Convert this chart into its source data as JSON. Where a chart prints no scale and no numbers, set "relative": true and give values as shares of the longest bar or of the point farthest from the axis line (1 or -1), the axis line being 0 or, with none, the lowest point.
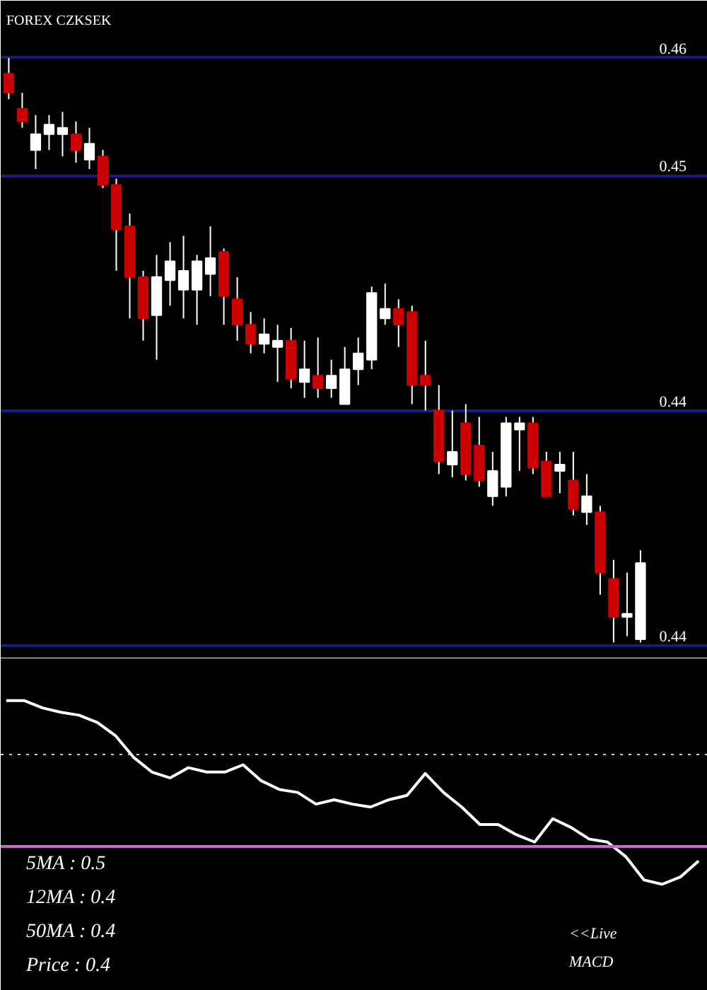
{
  "chart_data": [
    {
      "type": "candlestick",
      "title": "FOREX  CZKSEK",
      "categories": [
        null,
        null,
        null,
        null,
        null,
        null,
        null,
        null,
        null,
        null,
        null,
        null,
        null,
        null,
        null,
        null,
        null,
        null,
        null,
        null,
        null,
        null,
        null,
        null,
        null,
        null,
        null,
        null,
        null,
        null,
        null,
        null,
        null,
        null,
        null,
        null,
        null,
        null,
        null,
        null,
        null,
        null,
        null,
        null,
        null,
        null,
        null,
        null
      ],
      "ohlc": [
        [
          0.4547,
          0.4552,
          0.4539,
          0.4541
        ],
        [
          0.4536,
          0.4541,
          0.453,
          0.4532
        ],
        [
          0.4523,
          0.4534,
          0.4517,
          0.4528
        ],
        [
          0.4528,
          0.4534,
          0.4523,
          0.4531
        ],
        [
          0.4528,
          0.4535,
          0.4521,
          0.453
        ],
        [
          0.4528,
          0.4532,
          0.4519,
          0.4523
        ],
        [
          0.452,
          0.453,
          0.4517,
          0.4525
        ],
        [
          0.4521,
          0.4523,
          0.4511,
          0.4512
        ],
        [
          0.4512,
          0.4514,
          0.4485,
          0.4498
        ],
        [
          0.4499,
          0.4503,
          0.447,
          0.4483
        ],
        [
          0.4483,
          0.4485,
          0.4463,
          0.447
        ],
        [
          0.4471,
          0.449,
          0.4457,
          0.4483
        ],
        [
          0.4482,
          0.4494,
          0.4474,
          0.4488
        ],
        [
          0.4479,
          0.4496,
          0.447,
          0.4485
        ],
        [
          0.4479,
          0.449,
          0.4468,
          0.4488
        ],
        [
          0.4484,
          0.4499,
          0.4477,
          0.4489
        ],
        [
          0.4491,
          0.4492,
          0.4468,
          0.4477
        ],
        [
          0.4476,
          0.4483,
          0.4463,
          0.4468
        ],
        [
          0.4468,
          0.4472,
          0.4459,
          0.4462
        ],
        [
          0.4462,
          0.447,
          0.4459,
          0.4465
        ],
        [
          0.4461,
          0.4468,
          0.445,
          0.4463
        ],
        [
          0.4463,
          0.4467,
          0.4448,
          0.4451
        ],
        [
          0.445,
          0.4463,
          0.4445,
          0.4454
        ],
        [
          0.4452,
          0.4464,
          0.4445,
          0.4448
        ],
        [
          0.4448,
          0.4457,
          0.4445,
          0.4452
        ],
        [
          0.4443,
          0.4461,
          0.4443,
          0.4454
        ],
        [
          0.4454,
          0.4464,
          0.4449,
          0.4459
        ],
        [
          0.4457,
          0.448,
          0.4454,
          0.4478
        ],
        [
          0.447,
          0.4481,
          0.4468,
          0.4473
        ],
        [
          0.4473,
          0.4476,
          0.4461,
          0.4468
        ],
        [
          0.4472,
          0.4474,
          0.4443,
          0.4449
        ],
        [
          0.4452,
          0.4463,
          0.4441,
          0.4449
        ],
        [
          0.4441,
          0.4449,
          0.4421,
          0.4425
        ],
        [
          0.4424,
          0.4441,
          0.442,
          0.4428
        ],
        [
          0.4437,
          0.4443,
          0.4419,
          0.4421
        ],
        [
          0.443,
          0.4439,
          0.4417,
          0.4419
        ],
        [
          0.4414,
          0.4428,
          0.4411,
          0.4422
        ],
        [
          0.4417,
          0.4439,
          0.4414,
          0.4437
        ],
        [
          0.4435,
          0.4439,
          0.4422,
          0.4437
        ],
        [
          0.4437,
          0.4439,
          0.4421,
          0.4423
        ],
        [
          0.4425,
          0.4428,
          0.4414,
          0.4414
        ],
        [
          0.4422,
          0.4428,
          0.4415,
          0.4424
        ],
        [
          0.4419,
          0.4428,
          0.4408,
          0.441
        ],
        [
          0.4409,
          0.4421,
          0.4405,
          0.4414
        ],
        [
          0.4409,
          0.4411,
          0.4383,
          0.439
        ],
        [
          0.4388,
          0.4394,
          0.4368,
          0.4376
        ],
        [
          0.4376,
          0.439,
          0.437,
          0.4377
        ],
        [
          0.4369,
          0.4397,
          0.4368,
          0.4393
        ]
      ],
      "colors": [
        "#cc0000",
        "#cc0000",
        "#ffffff",
        "#ffffff",
        "#ffffff",
        "#cc0000",
        "#ffffff",
        "#cc0000",
        "#cc0000",
        "#cc0000",
        "#cc0000",
        "#ffffff",
        "#ffffff",
        "#ffffff",
        "#ffffff",
        "#ffffff",
        "#cc0000",
        "#cc0000",
        "#cc0000",
        "#ffffff",
        "#ffffff",
        "#cc0000",
        "#ffffff",
        "#cc0000",
        "#ffffff",
        "#ffffff",
        "#ffffff",
        "#ffffff",
        "#ffffff",
        "#cc0000",
        "#cc0000",
        "#cc0000",
        "#cc0000",
        "#ffffff",
        "#cc0000",
        "#cc0000",
        "#ffffff",
        "#ffffff",
        "#ffffff",
        "#cc0000",
        "#cc0000",
        "#ffffff",
        "#cc0000",
        "#ffffff",
        "#cc0000",
        "#cc0000",
        "#ffffff",
        "#ffffff"
      ],
      "ylim": [
        0.4363,
        0.457
      ],
      "yticks": [
        {
          "value": 0.4552,
          "label": "0.46"
        },
        {
          "value": 0.4515,
          "label": "0.45"
        },
        {
          "value": 0.4441,
          "label": "0.44"
        },
        {
          "value": 0.4367,
          "label": "0.44"
        }
      ],
      "grid": "y"
    },
    {
      "type": "line",
      "relative": true,
      "categories": [
        null,
        null,
        null,
        null,
        null,
        null,
        null,
        null,
        null,
        null,
        null,
        null,
        null,
        null,
        null,
        null,
        null,
        null,
        null,
        null,
        null,
        null,
        null,
        null,
        null,
        null,
        null,
        null,
        null,
        null,
        null,
        null,
        null,
        null,
        null,
        null,
        null,
        null,
        null
      ],
      "series": [
        {
          "color": "#ffffff",
          "values": [
            1,
            1,
            0.95,
            0.92,
            0.9,
            0.85,
            0.76,
            0.61,
            0.51,
            0.47,
            0.54,
            0.51,
            0.51,
            0.56,
            0.45,
            0.39,
            0.37,
            0.29,
            0.32,
            0.29,
            0.27,
            0.32,
            0.35,
            0.5,
            0.37,
            0.27,
            0.15,
            0.15,
            0.08,
            0.03,
            0.19,
            0.13,
            0.05,
            0.03,
            -0.07,
            -0.23,
            -0.26,
            -0.21,
            -0.1
          ]
        }
      ],
      "ref_lines": [
        {
          "axis": "y",
          "value": 0.63,
          "color": "#cccccc",
          "line_style": "dotted"
        },
        {
          "axis": "y",
          "value": 0,
          "color": "#cc66cc",
          "line_style": "solid"
        }
      ],
      "annotations": [
        "5MA : 0.5",
        "12MA : 0.4",
        "50MA : 0.4",
        "Price   : 0.4",
        "<<Live",
        "MACD"
      ]
    }
  ]
}
